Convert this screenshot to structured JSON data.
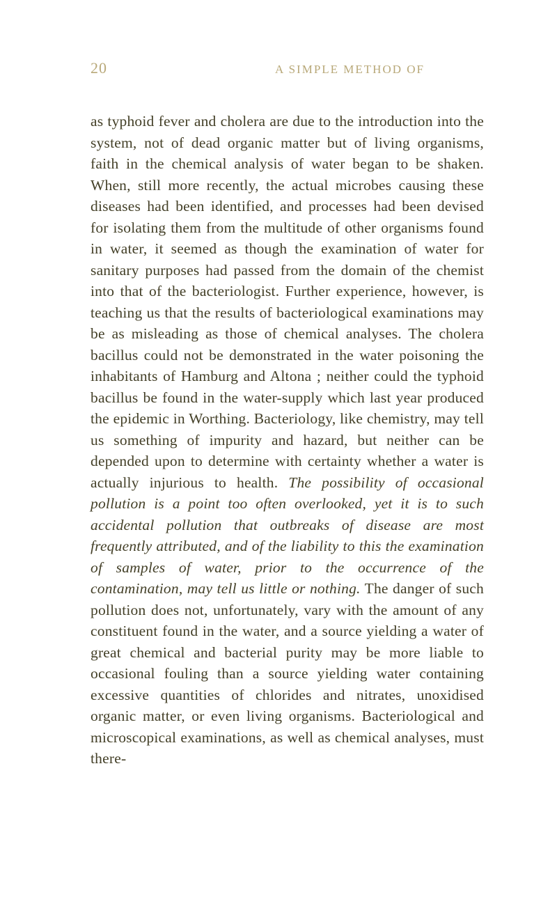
{
  "header": {
    "pageNumber": "20",
    "runningTitle": "A SIMPLE METHOD OF"
  },
  "paragraph": {
    "part1": "as typhoid fever and cholera are due to the introduc­tion into the system, not of dead organic matter but of living organisms, faith in the chemical analysis of water began to be shaken. When, still more recently, the actual microbes causing these diseases had been identified, and processes had been devised for isolating them from the multitude of other organisms found in water, it seemed as though the examination of water for sanitary purposes had passed from the domain of the chemist into that of the bacteriologist. Further experience, however, is teaching us that the results of bacteriological examinations may be as misleading as those of chemical analyses. The cholera bacillus could not be demonstrated in the water poisoning the inhabitants of Hamburg and Altona ; neither could the typhoid bacillus be found in the water-supply which last year produced the epidemic in Worthing. Bacteriology, like chemistry, may tell us something of impurity and hazard, but neither can be depended upon to determine with certainty whether a water is actually injurious to health. ",
    "italic1": "The possibility of occa­sional pollution is a point too often overlooked, yet it is to such accidental pollution that outbreaks of disease are most frequently attributed, and of the liability to this the examination of samples of water, prior to the occurrence of the contamination, may tell us little or nothing.",
    "part2": " The danger of such pollution does not, unfortunately, vary with the amount of any constituent found in the water, and a source yielding a water of great chemical and bacterial purity may be more liable to occasional fouling than a source yielding water containing excessive quantities of chlorides and nitrates, unoxidised organic matter, or even living organisms. Bacteriological and microscopical exa­minations, as well as chemical analyses, must there-"
  }
}
